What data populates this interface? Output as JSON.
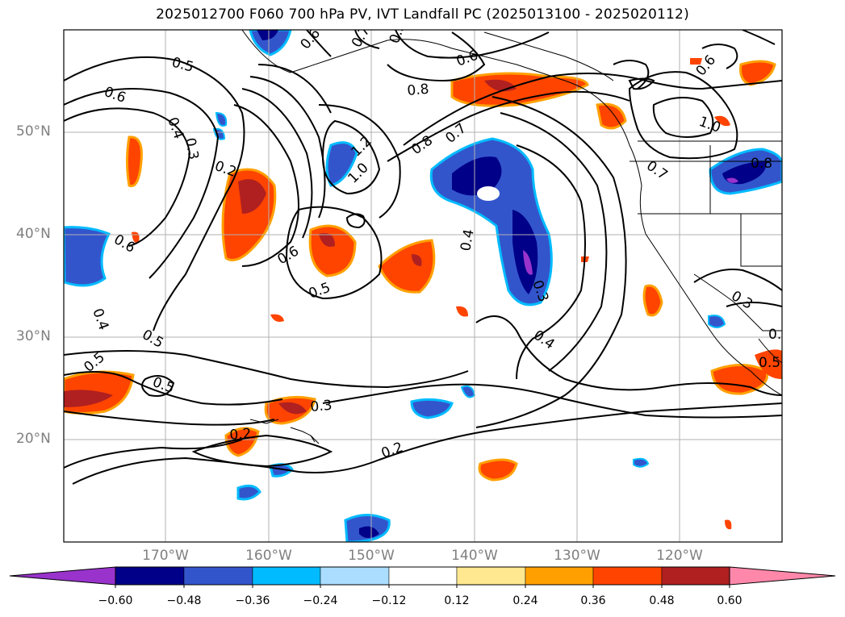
{
  "title": "2025012700 F060 700 hPa PV, IVT Landfall PC (2025013100 - 2025020112)",
  "lat_labels": [
    "50°N",
    "40°N",
    "30°N",
    "20°N"
  ],
  "lon_labels": [
    "170°W",
    "160°W",
    "150°W",
    "140°W",
    "130°W",
    "120°W"
  ],
  "colorbar": {
    "ticks": [
      "−0.60",
      "−0.48",
      "−0.36",
      "−0.24",
      "−0.12",
      "0.12",
      "0.24",
      "0.36",
      "0.48",
      "0.60"
    ],
    "colors": [
      "#9933cc",
      "#000088",
      "#3355cc",
      "#00bbff",
      "#aaddff",
      "#ffffff",
      "#ffe890",
      "#ffa000",
      "#ff4400",
      "#b02020",
      "#ff88aa"
    ]
  },
  "contour_labels": [
    "0.5",
    "0.6",
    "0.4",
    "0.3",
    "0.2",
    "1.2",
    "1.0",
    "0.8",
    "0.7",
    "0.6",
    "0.5",
    "0.4",
    "0.3",
    "0.2",
    "1.0",
    "0.8",
    "0.7",
    "0.6",
    "0.3",
    "0.5",
    "0.4",
    "0.5",
    "0.5",
    "0.6",
    "0.2",
    "0.3",
    "0.2",
    "0.4",
    "0.5",
    "0.7",
    "0.6",
    "0.5",
    "0.6",
    "0.8"
  ],
  "colors": {
    "axis_text": "#7f7f7f",
    "contour": "#000000",
    "grid": "#b0b0b0"
  }
}
